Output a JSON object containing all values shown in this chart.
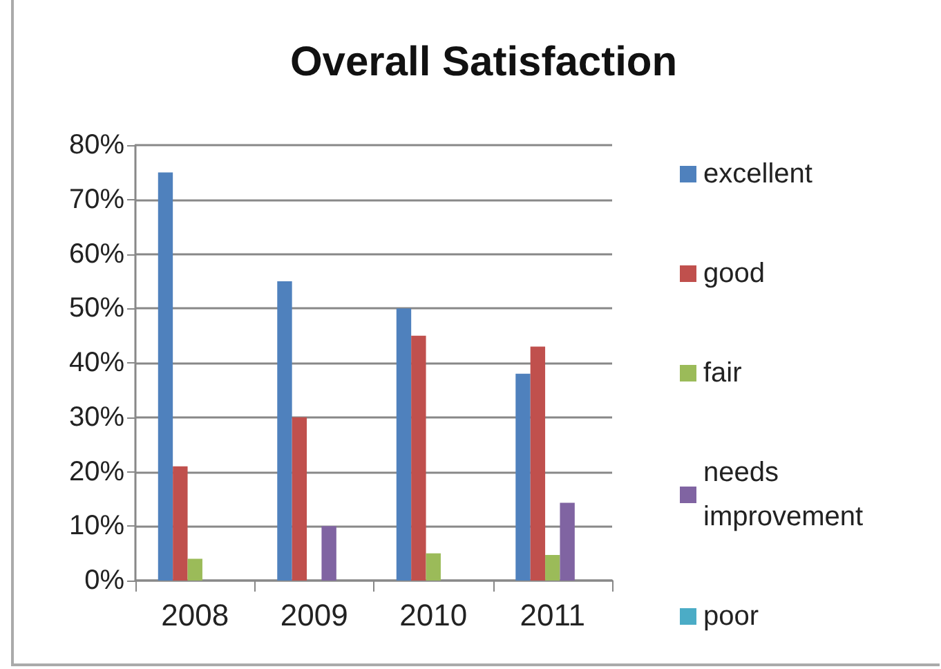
{
  "chart_data": {
    "type": "bar",
    "title": "Overall Satisfaction",
    "categories": [
      "2008",
      "2009",
      "2010",
      "2011"
    ],
    "series": [
      {
        "name": "excellent",
        "color": "#4f81bd",
        "values": [
          75,
          55,
          50,
          38
        ]
      },
      {
        "name": "good",
        "color": "#c0504d",
        "values": [
          21,
          30,
          45,
          43
        ]
      },
      {
        "name": "fair",
        "color": "#9bbb59",
        "values": [
          4,
          0,
          5,
          4.7
        ]
      },
      {
        "name": "needs improvement",
        "color": "#8064a2",
        "values": [
          0,
          10,
          0,
          14.3
        ]
      },
      {
        "name": "poor",
        "color": "#4bacc6",
        "values": [
          0,
          0,
          0,
          0
        ]
      }
    ],
    "ylim": [
      0,
      80
    ],
    "yticks": [
      {
        "value": 0,
        "label": "0%"
      },
      {
        "value": 10,
        "label": "10%"
      },
      {
        "value": 20,
        "label": "20%"
      },
      {
        "value": 30,
        "label": "30%"
      },
      {
        "value": 40,
        "label": "40%"
      },
      {
        "value": 50,
        "label": "50%"
      },
      {
        "value": 60,
        "label": "60%"
      },
      {
        "value": 70,
        "label": "70%"
      },
      {
        "value": 80,
        "label": "80%"
      }
    ],
    "grid": "y",
    "legend": "right"
  }
}
